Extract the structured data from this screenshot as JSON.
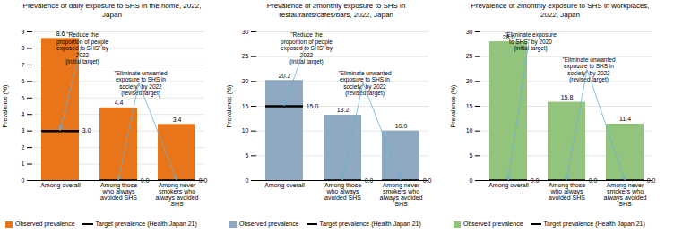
{
  "chart_data": [
    {
      "type": "bar",
      "title": "Prevalence of daily exposure to SHS in the home, 2022,\nJapan",
      "categories": [
        "Among overall",
        "Among those\nwho always\navoided SHS",
        "Among never\nsmokers who\nalways avoided\nSHS"
      ],
      "series": [
        {
          "name": "Observed prevalence",
          "type": "bar",
          "color": "#E8751A",
          "values": [
            8.6,
            4.4,
            3.4
          ],
          "value_labels": [
            "8.6",
            "4.4",
            "3.4"
          ]
        },
        {
          "name": "Target prevalence (Health Japan 21)",
          "type": "tick",
          "color": "#000000",
          "values": [
            3.0,
            0.0,
            0.0
          ],
          "value_labels": [
            "3.0",
            "0.0",
            "0.0"
          ]
        }
      ],
      "ylabel": "Prevalence (%)",
      "ylim": [
        0,
        9.0
      ],
      "yticks": [
        0,
        1,
        2,
        3,
        4,
        5,
        6,
        7,
        8,
        9
      ],
      "grid": true,
      "data_labels": true,
      "legend": "bottom left",
      "annotations": [
        {
          "text": "\"Reduce the\nproportion of people\nexposed to SHS\" by\n2022\n(initial target)",
          "color": "#6BAED6",
          "points": [
            {
              "category": "Among overall",
              "value": 3.0
            }
          ]
        },
        {
          "text": "\"Eliminate unwanted\nexposure to SHS in\nsociety\" by 2022\n(revised target)",
          "color": "#6BAED6",
          "points": [
            {
              "category": "Among those\nwho always\navoided SHS",
              "value": 0.0
            },
            {
              "category": "Among never\nsmokers who\nalways avoided\nSHS",
              "value": 0.0
            }
          ]
        }
      ]
    },
    {
      "type": "bar",
      "title": "Prevalence of ≥monthly exposure to SHS in\nrestaurants/cafes/bars, 2022, Japan",
      "categories": [
        "Among overall",
        "Among those\nwho always\navoided SHS",
        "Among never\nsmokers who\nalways avoided\nSHS"
      ],
      "series": [
        {
          "name": "Observed prevalence",
          "type": "bar",
          "color": "#8EA9C1",
          "values": [
            20.2,
            13.2,
            10.0
          ],
          "value_labels": [
            "20.2",
            "13.2",
            "10.0"
          ]
        },
        {
          "name": "Target prevalence (Health Japan 21)",
          "type": "tick",
          "color": "#000000",
          "values": [
            15.0,
            0.0,
            0.0
          ],
          "value_labels": [
            "15.0",
            "0.0",
            "0.0"
          ]
        }
      ],
      "ylabel": "Prevalence (%)",
      "ylim": [
        0,
        30.0
      ],
      "yticks": [
        0,
        5,
        10,
        15,
        20,
        25,
        30
      ],
      "grid": true,
      "data_labels": true,
      "legend": "bottom left",
      "annotations": [
        {
          "text": "\"Reduce the\nproportion of people\nexposed to SHS\" by\n2022\n(initial target)",
          "color": "#6BAED6",
          "points": [
            {
              "category": "Among overall",
              "value": 15.0
            }
          ]
        },
        {
          "text": "\"Eliminate unwanted\nexposure to SHS in\nsociety\" by 2022\n(revised target)",
          "color": "#6BAED6",
          "points": [
            {
              "category": "Among those\nwho always\navoided SHS",
              "value": 0.0
            },
            {
              "category": "Among never\nsmokers who\nalways avoided\nSHS",
              "value": 0.0
            }
          ]
        }
      ]
    },
    {
      "type": "bar",
      "title": "Prevalence of ≥monthly exposure to SHS in workplaces,\n2022, Japan",
      "categories": [
        "Among overall",
        "Among those\nwho always\navoided SHS",
        "Among never\nsmokers who\nalways avoided\nSHS"
      ],
      "series": [
        {
          "name": "Observed prevalence",
          "type": "bar",
          "color": "#93C47D",
          "values": [
            28.0,
            15.8,
            11.4
          ],
          "value_labels": [
            "28.0",
            "15.8",
            "11.4"
          ]
        },
        {
          "name": "Target prevalence (Health Japan 21)",
          "type": "tick",
          "color": "#000000",
          "values": [
            0.0,
            0.0,
            0.0
          ],
          "value_labels": [
            "0.0",
            "0.0",
            "0.0"
          ]
        }
      ],
      "ylabel": "Prevalence (%)",
      "ylim": [
        0,
        30.0
      ],
      "yticks": [
        0,
        5,
        10,
        15,
        20,
        25,
        30
      ],
      "grid": true,
      "data_labels": true,
      "legend": "bottom left",
      "annotations": [
        {
          "text": "\"Eliminate exposure\nto SHS\" by 2020\n(initial target)",
          "color": "#6BAED6",
          "points": [
            {
              "category": "Among overall",
              "value": 0.0
            }
          ]
        },
        {
          "text": "\"Eliminate unwanted\nexposure to SHS in\nsociety\" by 2022\n(revised target)",
          "color": "#6BAED6",
          "points": [
            {
              "category": "Among those\nwho always\navoided SHS",
              "value": 0.0
            },
            {
              "category": "Among never\nsmokers who\nalways avoided\nSHS",
              "value": 0.0
            }
          ]
        }
      ]
    }
  ]
}
